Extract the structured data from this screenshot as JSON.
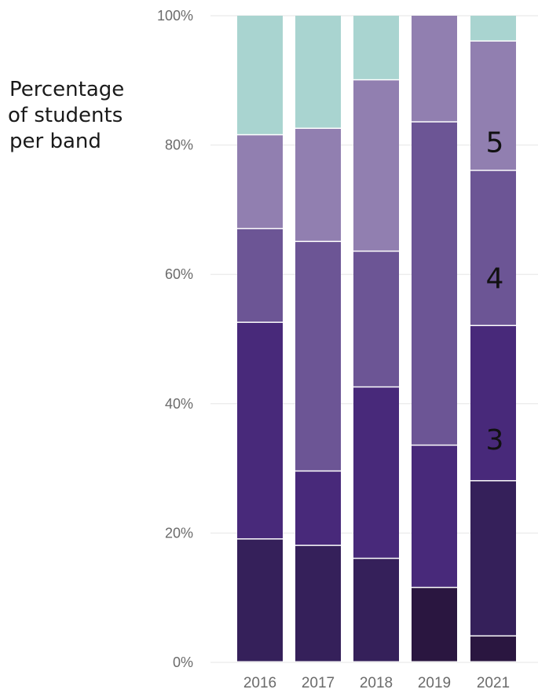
{
  "y_axis_title_lines": [
    "Percentage",
    "of students",
    "per band"
  ],
  "chart_data": {
    "type": "bar",
    "stacked": true,
    "categories": [
      "2016",
      "2017",
      "2018",
      "2019",
      "2021"
    ],
    "yticks": [
      "0%",
      "20%",
      "40%",
      "60%",
      "80%",
      "100%"
    ],
    "ylim": [
      0,
      100
    ],
    "grid": true,
    "series": [
      {
        "values": [
          0,
          0,
          0,
          11.5,
          4
        ],
        "color": "#2a1640"
      },
      {
        "values": [
          19,
          18,
          16,
          0,
          24
        ],
        "color": "#35205a"
      },
      {
        "values": [
          33.5,
          11.5,
          26.5,
          22,
          24
        ],
        "color": "#48297a"
      },
      {
        "values": [
          14.5,
          35.5,
          21,
          50,
          24
        ],
        "color": "#6c5595"
      },
      {
        "values": [
          14.5,
          17.5,
          26.5,
          16.5,
          20
        ],
        "color": "#917fb0"
      },
      {
        "values": [
          18.5,
          17.5,
          10,
          0,
          4
        ],
        "color": "#a9d4d0"
      }
    ],
    "annotations": [
      {
        "text": "5",
        "category": "2021",
        "y": 80.5
      },
      {
        "text": "4",
        "category": "2021",
        "y": 59.5
      },
      {
        "text": "3",
        "category": "2021",
        "y": 34.5
      }
    ]
  }
}
